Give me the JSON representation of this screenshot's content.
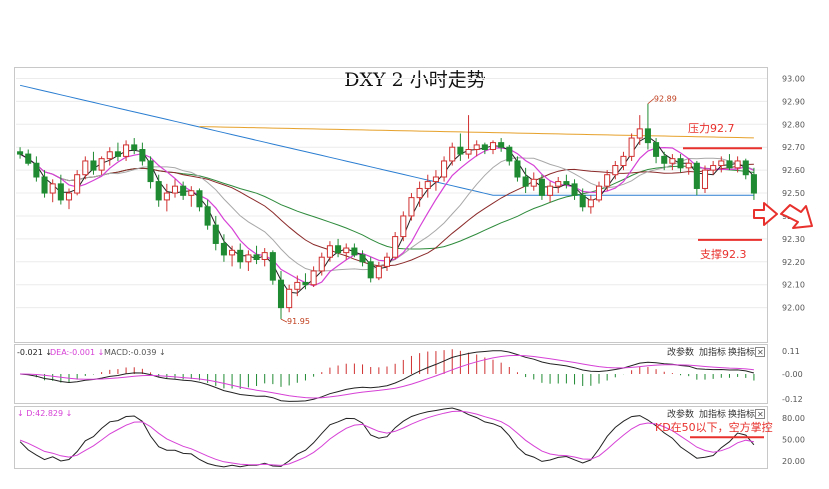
{
  "chart_data": {
    "type": "candlestick",
    "title": "DXY 2 小时走势",
    "price_axis": {
      "ticks": [
        "93.00",
        "92.90",
        "92.80",
        "92.70",
        "92.60",
        "92.50",
        "92.40",
        "92.30",
        "92.20",
        "92.10",
        "92.00"
      ],
      "ylim": [
        91.85,
        93.05
      ]
    },
    "annotations": {
      "high_label": "92.89",
      "low_label": "91.95",
      "resistance_label": "压力92.7",
      "resistance_value": 92.7,
      "support_label": "支撑92.3",
      "support_value": 92.3
    },
    "candles": [
      {
        "o": 92.68,
        "h": 92.7,
        "l": 92.65,
        "c": 92.67
      },
      {
        "o": 92.67,
        "h": 92.69,
        "l": 92.62,
        "c": 92.63
      },
      {
        "o": 92.63,
        "h": 92.66,
        "l": 92.55,
        "c": 92.57
      },
      {
        "o": 92.57,
        "h": 92.6,
        "l": 92.48,
        "c": 92.5
      },
      {
        "o": 92.5,
        "h": 92.56,
        "l": 92.46,
        "c": 92.54
      },
      {
        "o": 92.54,
        "h": 92.58,
        "l": 92.45,
        "c": 92.47
      },
      {
        "o": 92.47,
        "h": 92.52,
        "l": 92.43,
        "c": 92.5
      },
      {
        "o": 92.5,
        "h": 92.6,
        "l": 92.49,
        "c": 92.58
      },
      {
        "o": 92.58,
        "h": 92.66,
        "l": 92.56,
        "c": 92.64
      },
      {
        "o": 92.64,
        "h": 92.68,
        "l": 92.58,
        "c": 92.6
      },
      {
        "o": 92.6,
        "h": 92.66,
        "l": 92.58,
        "c": 92.65
      },
      {
        "o": 92.65,
        "h": 92.7,
        "l": 92.62,
        "c": 92.68
      },
      {
        "o": 92.68,
        "h": 92.72,
        "l": 92.64,
        "c": 92.66
      },
      {
        "o": 92.66,
        "h": 92.73,
        "l": 92.64,
        "c": 92.71
      },
      {
        "o": 92.71,
        "h": 92.74,
        "l": 92.67,
        "c": 92.69
      },
      {
        "o": 92.69,
        "h": 92.72,
        "l": 92.62,
        "c": 92.64
      },
      {
        "o": 92.64,
        "h": 92.66,
        "l": 92.52,
        "c": 92.55
      },
      {
        "o": 92.55,
        "h": 92.58,
        "l": 92.44,
        "c": 92.47
      },
      {
        "o": 92.47,
        "h": 92.54,
        "l": 92.42,
        "c": 92.5
      },
      {
        "o": 92.5,
        "h": 92.56,
        "l": 92.48,
        "c": 92.53
      },
      {
        "o": 92.53,
        "h": 92.55,
        "l": 92.47,
        "c": 92.49
      },
      {
        "o": 92.49,
        "h": 92.53,
        "l": 92.44,
        "c": 92.51
      },
      {
        "o": 92.51,
        "h": 92.52,
        "l": 92.42,
        "c": 92.44
      },
      {
        "o": 92.44,
        "h": 92.47,
        "l": 92.34,
        "c": 92.36
      },
      {
        "o": 92.36,
        "h": 92.4,
        "l": 92.25,
        "c": 92.28
      },
      {
        "o": 92.28,
        "h": 92.32,
        "l": 92.2,
        "c": 92.23
      },
      {
        "o": 92.23,
        "h": 92.27,
        "l": 92.18,
        "c": 92.25
      },
      {
        "o": 92.25,
        "h": 92.28,
        "l": 92.17,
        "c": 92.2
      },
      {
        "o": 92.2,
        "h": 92.25,
        "l": 92.16,
        "c": 92.23
      },
      {
        "o": 92.23,
        "h": 92.27,
        "l": 92.19,
        "c": 92.21
      },
      {
        "o": 92.21,
        "h": 92.26,
        "l": 92.18,
        "c": 92.24
      },
      {
        "o": 92.24,
        "h": 92.25,
        "l": 92.1,
        "c": 92.12
      },
      {
        "o": 92.12,
        "h": 92.16,
        "l": 91.95,
        "c": 92.0
      },
      {
        "o": 92.0,
        "h": 92.1,
        "l": 91.98,
        "c": 92.08
      },
      {
        "o": 92.08,
        "h": 92.14,
        "l": 92.05,
        "c": 92.11
      },
      {
        "o": 92.11,
        "h": 92.15,
        "l": 92.08,
        "c": 92.1
      },
      {
        "o": 92.1,
        "h": 92.18,
        "l": 92.09,
        "c": 92.16
      },
      {
        "o": 92.16,
        "h": 92.24,
        "l": 92.14,
        "c": 92.22
      },
      {
        "o": 92.22,
        "h": 92.29,
        "l": 92.2,
        "c": 92.27
      },
      {
        "o": 92.27,
        "h": 92.3,
        "l": 92.22,
        "c": 92.24
      },
      {
        "o": 92.24,
        "h": 92.28,
        "l": 92.21,
        "c": 92.26
      },
      {
        "o": 92.26,
        "h": 92.28,
        "l": 92.22,
        "c": 92.23
      },
      {
        "o": 92.23,
        "h": 92.25,
        "l": 92.18,
        "c": 92.2
      },
      {
        "o": 92.2,
        "h": 92.22,
        "l": 92.11,
        "c": 92.13
      },
      {
        "o": 92.13,
        "h": 92.2,
        "l": 92.12,
        "c": 92.18
      },
      {
        "o": 92.18,
        "h": 92.24,
        "l": 92.16,
        "c": 92.22
      },
      {
        "o": 92.22,
        "h": 92.33,
        "l": 92.21,
        "c": 92.31
      },
      {
        "o": 92.31,
        "h": 92.42,
        "l": 92.29,
        "c": 92.4
      },
      {
        "o": 92.4,
        "h": 92.5,
        "l": 92.38,
        "c": 92.48
      },
      {
        "o": 92.48,
        "h": 92.55,
        "l": 92.44,
        "c": 92.52
      },
      {
        "o": 92.52,
        "h": 92.58,
        "l": 92.48,
        "c": 92.55
      },
      {
        "o": 92.55,
        "h": 92.6,
        "l": 92.51,
        "c": 92.57
      },
      {
        "o": 92.57,
        "h": 92.66,
        "l": 92.55,
        "c": 92.64
      },
      {
        "o": 92.64,
        "h": 92.72,
        "l": 92.62,
        "c": 92.7
      },
      {
        "o": 92.7,
        "h": 92.76,
        "l": 92.64,
        "c": 92.67
      },
      {
        "o": 92.67,
        "h": 92.84,
        "l": 92.65,
        "c": 92.69
      },
      {
        "o": 92.69,
        "h": 92.73,
        "l": 92.66,
        "c": 92.71
      },
      {
        "o": 92.71,
        "h": 92.72,
        "l": 92.67,
        "c": 92.69
      },
      {
        "o": 92.69,
        "h": 92.73,
        "l": 92.67,
        "c": 92.72
      },
      {
        "o": 92.72,
        "h": 92.74,
        "l": 92.68,
        "c": 92.7
      },
      {
        "o": 92.7,
        "h": 92.71,
        "l": 92.62,
        "c": 92.64
      },
      {
        "o": 92.64,
        "h": 92.66,
        "l": 92.55,
        "c": 92.57
      },
      {
        "o": 92.57,
        "h": 92.61,
        "l": 92.5,
        "c": 92.53
      },
      {
        "o": 92.53,
        "h": 92.59,
        "l": 92.51,
        "c": 92.56
      },
      {
        "o": 92.56,
        "h": 92.58,
        "l": 92.47,
        "c": 92.49
      },
      {
        "o": 92.49,
        "h": 92.55,
        "l": 92.46,
        "c": 92.53
      },
      {
        "o": 92.53,
        "h": 92.57,
        "l": 92.5,
        "c": 92.55
      },
      {
        "o": 92.55,
        "h": 92.58,
        "l": 92.52,
        "c": 92.54
      },
      {
        "o": 92.54,
        "h": 92.56,
        "l": 92.47,
        "c": 92.49
      },
      {
        "o": 92.49,
        "h": 92.52,
        "l": 92.42,
        "c": 92.44
      },
      {
        "o": 92.44,
        "h": 92.49,
        "l": 92.41,
        "c": 92.47
      },
      {
        "o": 92.47,
        "h": 92.55,
        "l": 92.46,
        "c": 92.53
      },
      {
        "o": 92.53,
        "h": 92.6,
        "l": 92.51,
        "c": 92.58
      },
      {
        "o": 92.58,
        "h": 92.64,
        "l": 92.56,
        "c": 92.62
      },
      {
        "o": 92.62,
        "h": 92.68,
        "l": 92.6,
        "c": 92.66
      },
      {
        "o": 92.66,
        "h": 92.76,
        "l": 92.64,
        "c": 92.74
      },
      {
        "o": 92.74,
        "h": 92.84,
        "l": 92.71,
        "c": 92.78
      },
      {
        "o": 92.78,
        "h": 92.89,
        "l": 92.69,
        "c": 92.72
      },
      {
        "o": 92.72,
        "h": 92.74,
        "l": 92.63,
        "c": 92.66
      },
      {
        "o": 92.66,
        "h": 92.68,
        "l": 92.6,
        "c": 92.63
      },
      {
        "o": 92.63,
        "h": 92.67,
        "l": 92.6,
        "c": 92.65
      },
      {
        "o": 92.65,
        "h": 92.67,
        "l": 92.59,
        "c": 92.61
      },
      {
        "o": 92.61,
        "h": 92.65,
        "l": 92.58,
        "c": 92.63
      },
      {
        "o": 92.63,
        "h": 92.64,
        "l": 92.49,
        "c": 92.52
      },
      {
        "o": 92.52,
        "h": 92.62,
        "l": 92.5,
        "c": 92.6
      },
      {
        "o": 92.6,
        "h": 92.64,
        "l": 92.58,
        "c": 92.62
      },
      {
        "o": 92.62,
        "h": 92.66,
        "l": 92.59,
        "c": 92.64
      },
      {
        "o": 92.64,
        "h": 92.67,
        "l": 92.6,
        "c": 92.61
      },
      {
        "o": 92.61,
        "h": 92.66,
        "l": 92.59,
        "c": 92.64
      },
      {
        "o": 92.64,
        "h": 92.65,
        "l": 92.56,
        "c": 92.58
      },
      {
        "o": 92.58,
        "h": 92.61,
        "l": 92.47,
        "c": 92.5
      }
    ],
    "macd_panel": {
      "legend": [
        "-0.021 ↓",
        "DEA:-0.001 ↓",
        "MACD:-0.039 ↓"
      ],
      "ticks": [
        "0.11",
        "-0.00",
        "-0.12"
      ],
      "ylim": [
        -0.14,
        0.14
      ]
    },
    "kd_panel": {
      "legend": [
        "↓ D:42.829 ↓"
      ],
      "ticks": [
        "80.00",
        "50.00",
        "20.00"
      ],
      "ylim": [
        10,
        95
      ],
      "annotation_label": "KD在50以下，空方掌控",
      "annotation_value": 50
    },
    "colors": {
      "up": "#d03030",
      "down": "#1f8a32",
      "annotation": "#e8302c",
      "ma_blue": "#2a7dd1",
      "ma_orange": "#e6a12b",
      "ma_green": "#2e8b3c",
      "ma_brown": "#8b2a2a",
      "ma_pink": "#d641d6",
      "ma_gray": "#a8a8a8"
    }
  },
  "panel_buttons": {
    "change_params": "改参数",
    "add_indicator": "加指标",
    "switch_indicator": "换指标",
    "close": "✕"
  }
}
